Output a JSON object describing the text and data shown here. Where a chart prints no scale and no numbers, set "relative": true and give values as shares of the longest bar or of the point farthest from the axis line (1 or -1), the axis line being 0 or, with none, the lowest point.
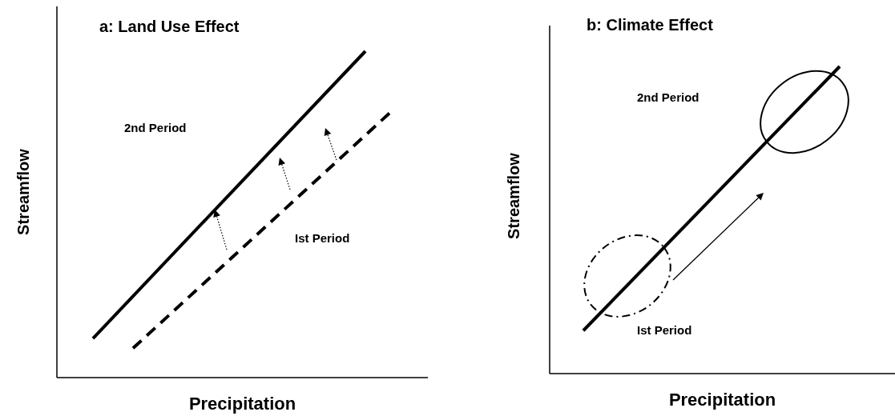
{
  "chart_data": [
    {
      "type": "line",
      "title": "a: Land Use Effect",
      "xlabel": "Precipitation",
      "ylabel": "Streamflow",
      "relative": true,
      "categories": [
        null,
        null,
        null,
        null,
        null,
        null,
        null,
        null,
        null,
        null,
        null,
        null,
        null,
        null,
        null,
        null,
        null,
        null,
        null,
        null,
        null,
        null,
        null,
        null,
        null,
        null,
        null,
        null,
        null,
        null,
        null,
        null,
        null,
        null,
        null,
        null,
        null,
        null
      ],
      "series": [
        {
          "color": "#000000",
          "line_style": "solid",
          "values": [
            0.12,
            null,
            null,
            null,
            null,
            null,
            null,
            null,
            null,
            null,
            null,
            null,
            null,
            null,
            null,
            null,
            null,
            null,
            null,
            null,
            null,
            null,
            null,
            null,
            null,
            null,
            null,
            null,
            null,
            null,
            null,
            null,
            null,
            null,
            1.0,
            null,
            null,
            null
          ]
        },
        {
          "color": "#000000",
          "line_style": "dashed",
          "values": [
            null,
            null,
            null,
            null,
            null,
            0.09,
            null,
            null,
            null,
            null,
            null,
            null,
            null,
            null,
            null,
            null,
            null,
            null,
            null,
            null,
            null,
            null,
            null,
            null,
            null,
            null,
            null,
            null,
            null,
            null,
            null,
            null,
            null,
            null,
            null,
            null,
            null,
            0.81
          ]
        }
      ],
      "annotations": [
        "2nd Period",
        "Ist Period"
      ]
    },
    {
      "type": "line",
      "title": "b: Climate Effect",
      "xlabel": "Precipitation",
      "ylabel": "Streamflow",
      "relative": true,
      "categories": [
        null,
        null,
        null,
        null,
        null,
        null,
        null,
        null,
        null,
        null,
        null,
        null,
        null,
        null,
        null,
        null,
        null,
        null,
        null,
        null,
        null,
        null,
        null,
        null,
        null,
        null,
        null,
        null,
        null,
        null,
        null,
        null,
        null
      ],
      "series": [
        {
          "color": "#000000",
          "line_style": "solid",
          "values": [
            0.14,
            null,
            null,
            null,
            null,
            null,
            null,
            null,
            null,
            null,
            null,
            null,
            null,
            null,
            null,
            null,
            null,
            null,
            null,
            null,
            null,
            null,
            null,
            null,
            null,
            null,
            null,
            null,
            null,
            null,
            null,
            null,
            1.0
          ]
        }
      ],
      "annotations": [
        "2nd Period",
        "Ist Period"
      ]
    }
  ]
}
